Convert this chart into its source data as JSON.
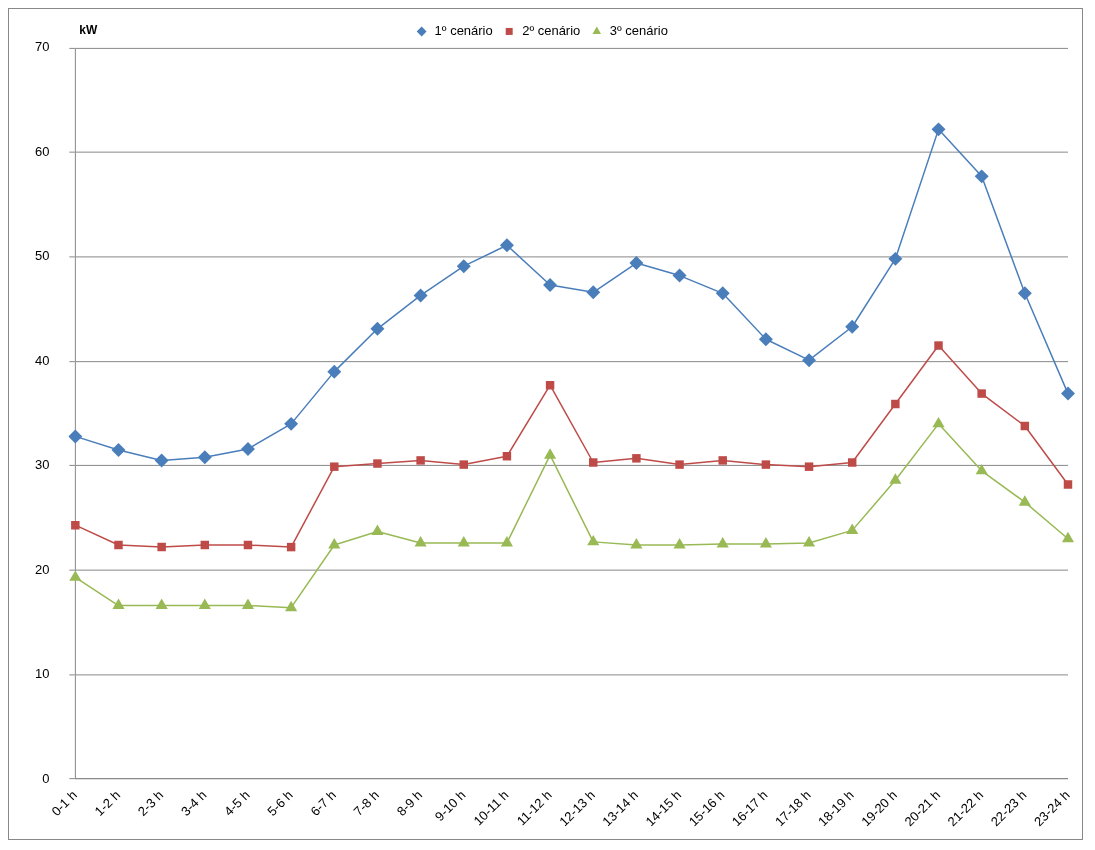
{
  "chart_data": {
    "type": "line",
    "ylabel": "kW",
    "categories": [
      "0-1 h",
      "1-2 h",
      "2-3 h",
      "3-4 h",
      "4-5 h",
      "5-6 h",
      "6-7 h",
      "7-8 h",
      "8-9 h",
      "9-10 h",
      "10-11 h",
      "11-12 h",
      "12-13 h",
      "13-14 h",
      "14-15 h",
      "15-16 h",
      "16-17 h",
      "17-18 h",
      "18-19 h",
      "19-20 h",
      "20-21 h",
      "21-22 h",
      "22-23 h",
      "23-24 h"
    ],
    "series": [
      {
        "name": "1º cenário",
        "color": "#4a7ebb",
        "marker": "diamond",
        "values": [
          32.8,
          31.5,
          30.5,
          30.8,
          31.6,
          34.0,
          39.0,
          43.1,
          46.3,
          49.1,
          51.1,
          47.3,
          46.6,
          49.4,
          48.2,
          46.5,
          42.1,
          40.1,
          43.3,
          49.8,
          62.2,
          57.7,
          46.5,
          36.9
        ]
      },
      {
        "name": "2º cenário",
        "color": "#be4b48",
        "marker": "square",
        "values": [
          24.3,
          22.4,
          22.2,
          22.4,
          22.4,
          22.2,
          29.9,
          30.2,
          30.5,
          30.1,
          30.9,
          37.7,
          30.3,
          30.7,
          30.1,
          30.5,
          30.1,
          29.9,
          30.3,
          35.9,
          41.5,
          36.9,
          33.8,
          28.2
        ]
      },
      {
        "name": "3º cenário",
        "color": "#98b954",
        "marker": "triangle",
        "values": [
          19.3,
          16.6,
          16.6,
          16.6,
          16.6,
          16.4,
          22.4,
          23.7,
          22.6,
          22.6,
          22.6,
          31.0,
          22.7,
          22.4,
          22.4,
          22.5,
          22.5,
          22.6,
          23.8,
          28.6,
          34.0,
          29.5,
          26.5,
          23.0
        ]
      }
    ],
    "ylim": [
      0,
      70
    ],
    "yticks": [
      0,
      10,
      20,
      30,
      40,
      50,
      60,
      70
    ],
    "grid": "y",
    "legend": "top"
  }
}
